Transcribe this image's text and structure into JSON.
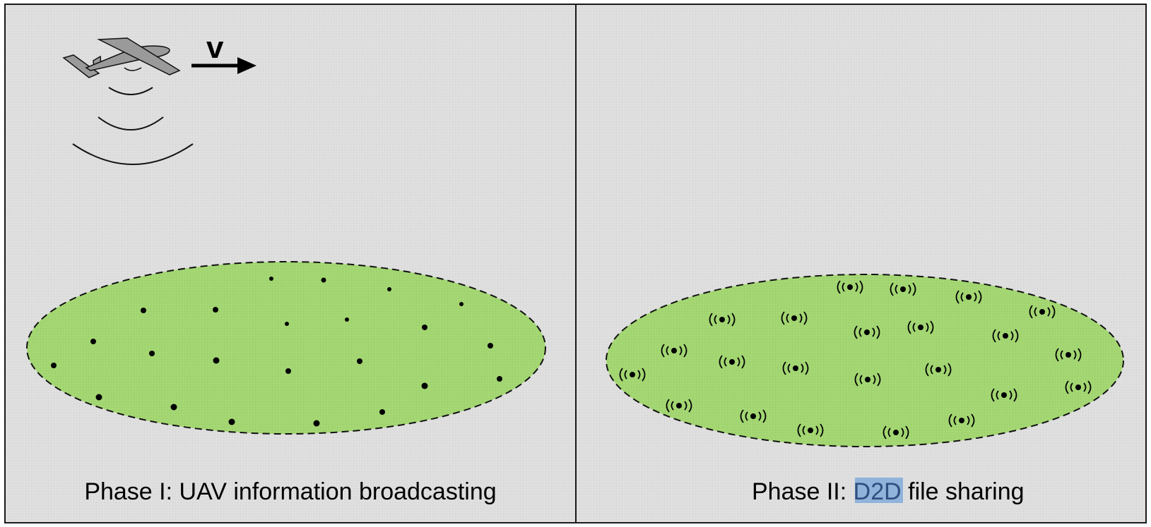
{
  "colors": {
    "panel_bg": "#dedede",
    "border": "#1a1a1a",
    "area_fill": "#a3d672",
    "area_stroke": "#111111",
    "node": "#000000",
    "aircraft_body": "#9a9a9a",
    "highlight_bg": "#8fb3db",
    "highlight_text": "#2f4f7f"
  },
  "icons": {
    "aircraft": "uav-airplane-icon",
    "broadcast_waves": "broadcast-wave-icon",
    "velocity_arrow": "arrow-right-icon",
    "device_node": "device-dot-icon",
    "d2d_node": "wireless-device-icon"
  },
  "panel_left": {
    "velocity_label": "v",
    "caption": "Phase I: UAV information broadcasting"
  },
  "panel_right": {
    "caption_prefix": "Phase II: ",
    "caption_highlight": "D2D",
    "caption_suffix": " file sharing"
  }
}
